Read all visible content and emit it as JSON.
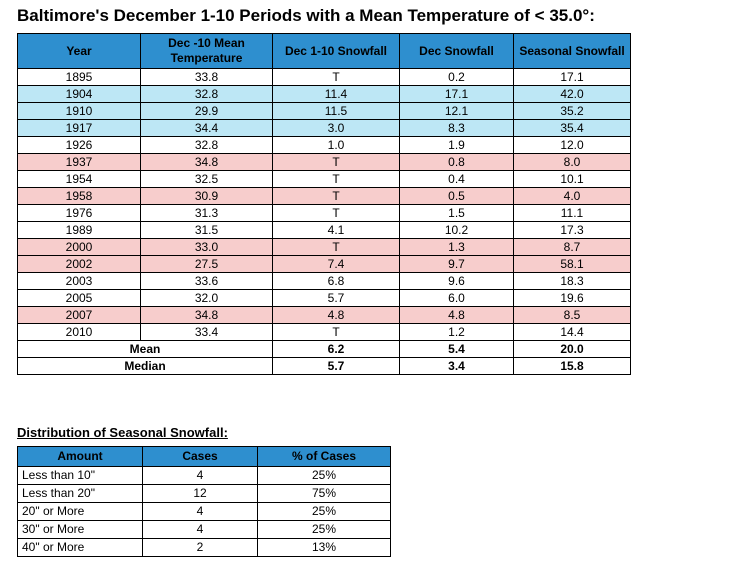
{
  "title": "Baltimore's December 1-10 Periods with a Mean Temperature of < 35.0°:",
  "colors": {
    "header_bg": "#2E8FCF",
    "blue_row": "#BDE7F5",
    "pink_row": "#F7CDCC"
  },
  "main_table": {
    "headers": [
      "Year",
      "Dec -10 Mean Temperature",
      "Dec 1-10 Snowfall",
      "Dec Snowfall",
      "Seasonal Snowfall"
    ],
    "rows": [
      {
        "year": "1895",
        "temp": "33.8",
        "dec110": "T",
        "dec": "0.2",
        "seasonal": "17.1",
        "bg": "white"
      },
      {
        "year": "1904",
        "temp": "32.8",
        "dec110": "11.4",
        "dec": "17.1",
        "seasonal": "42.0",
        "bg": "blue"
      },
      {
        "year": "1910",
        "temp": "29.9",
        "dec110": "11.5",
        "dec": "12.1",
        "seasonal": "35.2",
        "bg": "blue"
      },
      {
        "year": "1917",
        "temp": "34.4",
        "dec110": "3.0",
        "dec": "8.3",
        "seasonal": "35.4",
        "bg": "blue"
      },
      {
        "year": "1926",
        "temp": "32.8",
        "dec110": "1.0",
        "dec": "1.9",
        "seasonal": "12.0",
        "bg": "white"
      },
      {
        "year": "1937",
        "temp": "34.8",
        "dec110": "T",
        "dec": "0.8",
        "seasonal": "8.0",
        "bg": "pink"
      },
      {
        "year": "1954",
        "temp": "32.5",
        "dec110": "T",
        "dec": "0.4",
        "seasonal": "10.1",
        "bg": "white"
      },
      {
        "year": "1958",
        "temp": "30.9",
        "dec110": "T",
        "dec": "0.5",
        "seasonal": "4.0",
        "bg": "pink"
      },
      {
        "year": "1976",
        "temp": "31.3",
        "dec110": "T",
        "dec": "1.5",
        "seasonal": "11.1",
        "bg": "white"
      },
      {
        "year": "1989",
        "temp": "31.5",
        "dec110": "4.1",
        "dec": "10.2",
        "seasonal": "17.3",
        "bg": "white"
      },
      {
        "year": "2000",
        "temp": "33.0",
        "dec110": "T",
        "dec": "1.3",
        "seasonal": "8.7",
        "bg": "pink"
      },
      {
        "year": "2002",
        "temp": "27.5",
        "dec110": "7.4",
        "dec": "9.7",
        "seasonal": "58.1",
        "bg": "pink"
      },
      {
        "year": "2003",
        "temp": "33.6",
        "dec110": "6.8",
        "dec": "9.6",
        "seasonal": "18.3",
        "bg": "white"
      },
      {
        "year": "2005",
        "temp": "32.0",
        "dec110": "5.7",
        "dec": "6.0",
        "seasonal": "19.6",
        "bg": "white"
      },
      {
        "year": "2007",
        "temp": "34.8",
        "dec110": "4.8",
        "dec": "4.8",
        "seasonal": "8.5",
        "bg": "pink"
      },
      {
        "year": "2010",
        "temp": "33.4",
        "dec110": "T",
        "dec": "1.2",
        "seasonal": "14.4",
        "bg": "white"
      }
    ],
    "summary": [
      {
        "label": "Mean",
        "dec110": "6.2",
        "dec": "5.4",
        "seasonal": "20.0"
      },
      {
        "label": "Median",
        "dec110": "5.7",
        "dec": "3.4",
        "seasonal": "15.8"
      }
    ]
  },
  "distribution": {
    "label": "Distribution of Seasonal Snowfall:",
    "headers": [
      "Amount",
      "Cases",
      "% of Cases"
    ],
    "rows": [
      {
        "amount": "Less than 10\"",
        "cases": "4",
        "pct": "25%"
      },
      {
        "amount": "Less than 20\"",
        "cases": "12",
        "pct": "75%"
      },
      {
        "amount": "20\" or More",
        "cases": "4",
        "pct": "25%"
      },
      {
        "amount": "30\" or More",
        "cases": "4",
        "pct": "25%"
      },
      {
        "amount": "40\" or More",
        "cases": "2",
        "pct": "13%"
      }
    ]
  },
  "chart_data": [
    {
      "type": "table",
      "title": "Baltimore's December 1-10 Periods with a Mean Temperature of < 35.0°:",
      "columns": [
        "Year",
        "Dec -10 Mean Temperature",
        "Dec 1-10 Snowfall",
        "Dec Snowfall",
        "Seasonal Snowfall"
      ],
      "rows": [
        [
          1895,
          33.8,
          "T",
          0.2,
          17.1
        ],
        [
          1904,
          32.8,
          11.4,
          17.1,
          42.0
        ],
        [
          1910,
          29.9,
          11.5,
          12.1,
          35.2
        ],
        [
          1917,
          34.4,
          3.0,
          8.3,
          35.4
        ],
        [
          1926,
          32.8,
          1.0,
          1.9,
          12.0
        ],
        [
          1937,
          34.8,
          "T",
          0.8,
          8.0
        ],
        [
          1954,
          32.5,
          "T",
          0.4,
          10.1
        ],
        [
          1958,
          30.9,
          "T",
          0.5,
          4.0
        ],
        [
          1976,
          31.3,
          "T",
          1.5,
          11.1
        ],
        [
          1989,
          31.5,
          4.1,
          10.2,
          17.3
        ],
        [
          2000,
          33.0,
          "T",
          1.3,
          8.7
        ],
        [
          2002,
          27.5,
          7.4,
          9.7,
          58.1
        ],
        [
          2003,
          33.6,
          6.8,
          9.6,
          18.3
        ],
        [
          2005,
          32.0,
          5.7,
          6.0,
          19.6
        ],
        [
          2007,
          34.8,
          4.8,
          4.8,
          8.5
        ],
        [
          2010,
          33.4,
          "T",
          1.2,
          14.4
        ]
      ],
      "mean": [
        "Mean",
        null,
        6.2,
        5.4,
        20.0
      ],
      "median": [
        "Median",
        null,
        5.7,
        3.4,
        15.8
      ]
    },
    {
      "type": "table",
      "title": "Distribution of Seasonal Snowfall:",
      "columns": [
        "Amount",
        "Cases",
        "% of Cases"
      ],
      "rows": [
        [
          "Less than 10\"",
          4,
          "25%"
        ],
        [
          "Less than 20\"",
          12,
          "75%"
        ],
        [
          "20\" or More",
          4,
          "25%"
        ],
        [
          "30\" or More",
          4,
          "25%"
        ],
        [
          "40\" or More",
          2,
          "13%"
        ]
      ]
    }
  ]
}
